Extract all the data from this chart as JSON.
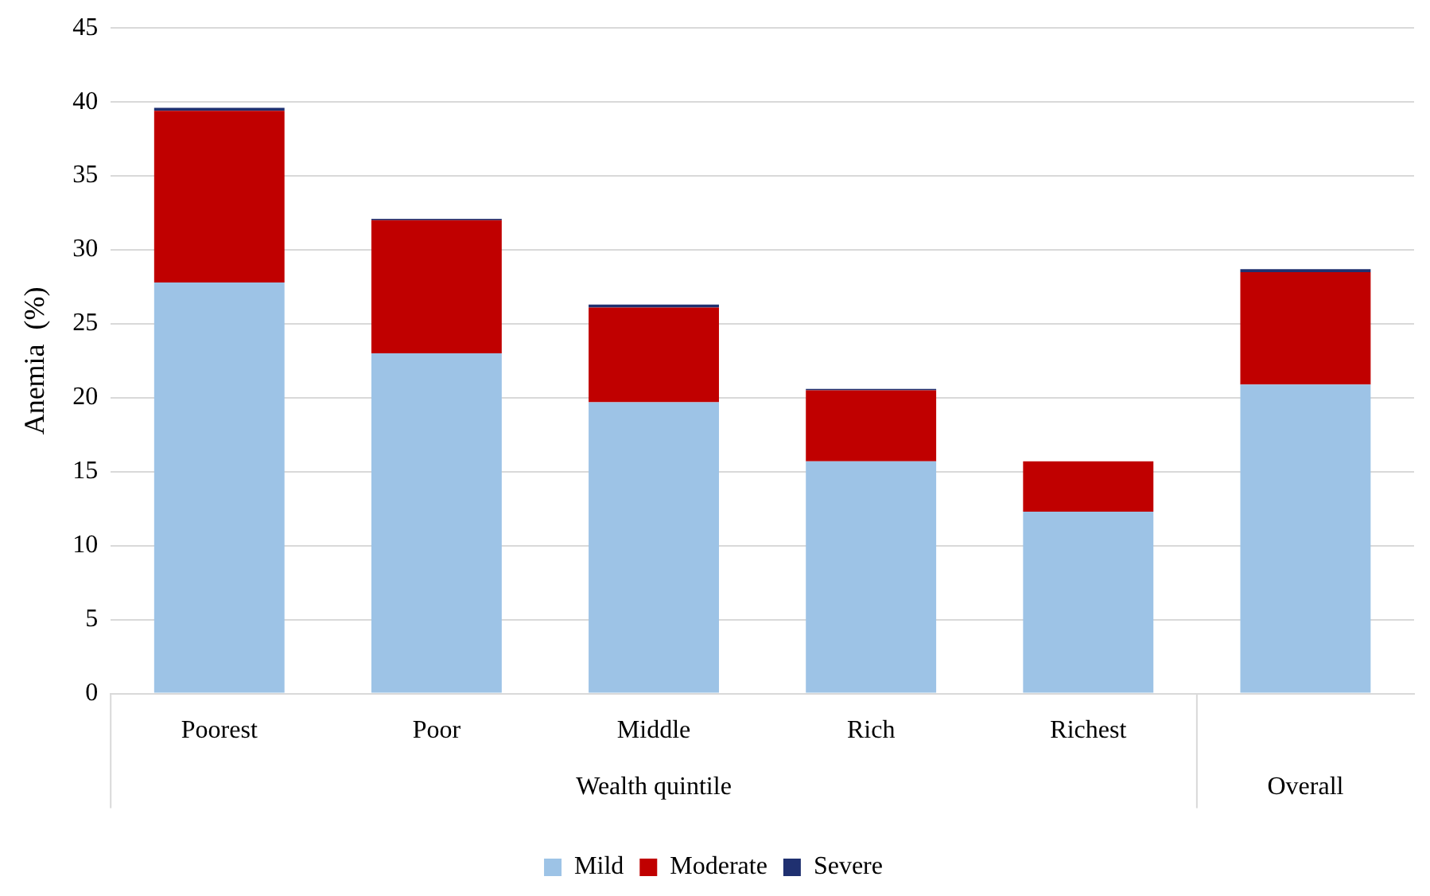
{
  "chart_data": {
    "type": "bar",
    "stacked": true,
    "ylabel": "Anemia  (%)",
    "categories": [
      "Poorest",
      "Poor",
      "Middle",
      "Rich",
      "Richest",
      null
    ],
    "annotations": [
      "Wealth quintile",
      "Overall"
    ],
    "series": [
      {
        "name": "Mild",
        "color": "#9dc3e6",
        "values": [
          27.8,
          23.0,
          19.7,
          15.7,
          12.3,
          20.9
        ]
      },
      {
        "name": "Moderate",
        "color": "#c00000",
        "values": [
          11.6,
          9.0,
          6.4,
          4.8,
          3.4,
          7.6
        ]
      },
      {
        "name": "Severe",
        "color": "#1f3070",
        "values": [
          0.2,
          0.1,
          0.2,
          0.1,
          0,
          0.2
        ]
      }
    ],
    "ylim": [
      0,
      45
    ],
    "yticks": [
      0,
      5,
      10,
      15,
      20,
      25,
      30,
      35,
      40,
      45
    ],
    "grid": "y",
    "legend": "bottom"
  }
}
